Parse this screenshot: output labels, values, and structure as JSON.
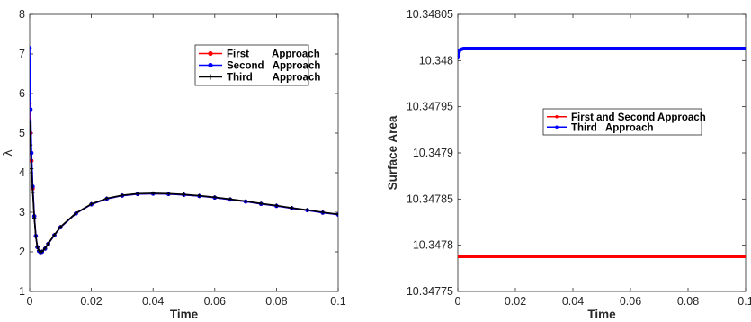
{
  "chart_data": [
    {
      "type": "line",
      "xlabel": "Time",
      "ylabel": "λ",
      "xlim": [
        0,
        0.1
      ],
      "ylim": [
        1,
        8
      ],
      "xticks": [
        0,
        0.02,
        0.04,
        0.06,
        0.08,
        0.1
      ],
      "xtick_labels": [
        "0",
        "0.02",
        "0.04",
        "0.06",
        "0.08",
        "0.1"
      ],
      "yticks": [
        1,
        2,
        3,
        4,
        5,
        6,
        7,
        8
      ],
      "ytick_labels": [
        "1",
        "2",
        "3",
        "4",
        "5",
        "6",
        "7",
        "8"
      ],
      "grid": false,
      "legend_position": "top-right",
      "series": [
        {
          "name": "First        Approach",
          "color": "#ff0000",
          "marker": "circle",
          "x": [
            0,
            0.0003,
            0.0006,
            0.001,
            0.0015,
            0.002,
            0.0025,
            0.003,
            0.0035,
            0.004,
            0.005,
            0.006,
            0.008,
            0.01,
            0.015,
            0.02,
            0.025,
            0.03,
            0.035,
            0.04,
            0.045,
            0.05,
            0.055,
            0.06,
            0.065,
            0.07,
            0.075,
            0.08,
            0.085,
            0.09,
            0.095,
            0.1
          ],
          "y": [
            5.75,
            5.0,
            4.3,
            3.6,
            2.9,
            2.4,
            2.12,
            2.02,
            1.99,
            2.0,
            2.08,
            2.2,
            2.42,
            2.62,
            2.97,
            3.2,
            3.34,
            3.42,
            3.46,
            3.47,
            3.46,
            3.44,
            3.41,
            3.37,
            3.32,
            3.27,
            3.21,
            3.16,
            3.1,
            3.05,
            2.99,
            2.94
          ]
        },
        {
          "name": "Second   Approach",
          "color": "#0000ff",
          "marker": "circle",
          "x": [
            0,
            0.0003,
            0.0006,
            0.001,
            0.0015,
            0.002,
            0.0025,
            0.003,
            0.0035,
            0.004,
            0.005,
            0.006,
            0.008,
            0.01,
            0.015,
            0.02,
            0.025,
            0.03,
            0.035,
            0.04,
            0.045,
            0.05,
            0.055,
            0.06,
            0.065,
            0.07,
            0.075,
            0.08,
            0.085,
            0.09,
            0.095,
            0.1
          ],
          "y": [
            7.15,
            5.6,
            4.5,
            3.65,
            2.9,
            2.4,
            2.12,
            2.02,
            1.99,
            2.0,
            2.08,
            2.2,
            2.42,
            2.62,
            2.97,
            3.2,
            3.34,
            3.42,
            3.46,
            3.47,
            3.46,
            3.44,
            3.41,
            3.37,
            3.32,
            3.27,
            3.21,
            3.16,
            3.1,
            3.05,
            2.99,
            2.94
          ]
        },
        {
          "name": "Third       Approach",
          "color": "#000000",
          "marker": "plus",
          "x": [
            0,
            0.0003,
            0.0006,
            0.001,
            0.0015,
            0.002,
            0.0025,
            0.003,
            0.0035,
            0.004,
            0.005,
            0.006,
            0.008,
            0.01,
            0.015,
            0.02,
            0.025,
            0.03,
            0.035,
            0.04,
            0.045,
            0.05,
            0.055,
            0.06,
            0.065,
            0.07,
            0.075,
            0.08,
            0.085,
            0.09,
            0.095,
            0.1
          ],
          "y": [
            5.3,
            4.7,
            4.1,
            3.5,
            2.85,
            2.38,
            2.12,
            2.03,
            2.0,
            2.01,
            2.09,
            2.21,
            2.43,
            2.63,
            2.98,
            3.21,
            3.35,
            3.43,
            3.47,
            3.48,
            3.47,
            3.45,
            3.42,
            3.38,
            3.33,
            3.28,
            3.22,
            3.17,
            3.11,
            3.06,
            3.0,
            2.95
          ]
        }
      ]
    },
    {
      "type": "line",
      "xlabel": "Time",
      "ylabel": "Surface Area",
      "xlim": [
        0,
        0.1
      ],
      "ylim": [
        10.34775,
        10.34805
      ],
      "xticks": [
        0,
        0.02,
        0.04,
        0.06,
        0.08,
        0.1
      ],
      "xtick_labels": [
        "0",
        "0.02",
        "0.04",
        "0.06",
        "0.08",
        "0.1"
      ],
      "yticks": [
        10.34775,
        10.3478,
        10.34785,
        10.3479,
        10.34795,
        10.348,
        10.34805
      ],
      "ytick_labels": [
        "10.34775",
        "10.3478",
        "10.34785",
        "10.3479",
        "10.34795",
        "10.348",
        "10.34805"
      ],
      "grid": false,
      "legend_position": "center-right",
      "series": [
        {
          "name": "First and Second Approach",
          "color": "#ff0000",
          "marker": "dot",
          "x": [
            0,
            0.1
          ],
          "y": [
            10.347788,
            10.347788
          ]
        },
        {
          "name": "Third   Approach",
          "color": "#0000ff",
          "marker": "dot",
          "x": [
            0,
            0.0003,
            0.0006,
            0.001,
            0.0015,
            0.002,
            0.003,
            0.004,
            0.006,
            0.01,
            0.02,
            0.04,
            0.06,
            0.08,
            0.1
          ],
          "y": [
            10.348003,
            10.348008,
            10.348011,
            10.348012,
            10.3480125,
            10.348013,
            10.348013,
            10.348013,
            10.348013,
            10.348013,
            10.348013,
            10.348013,
            10.348013,
            10.348013,
            10.348013
          ]
        }
      ]
    }
  ]
}
